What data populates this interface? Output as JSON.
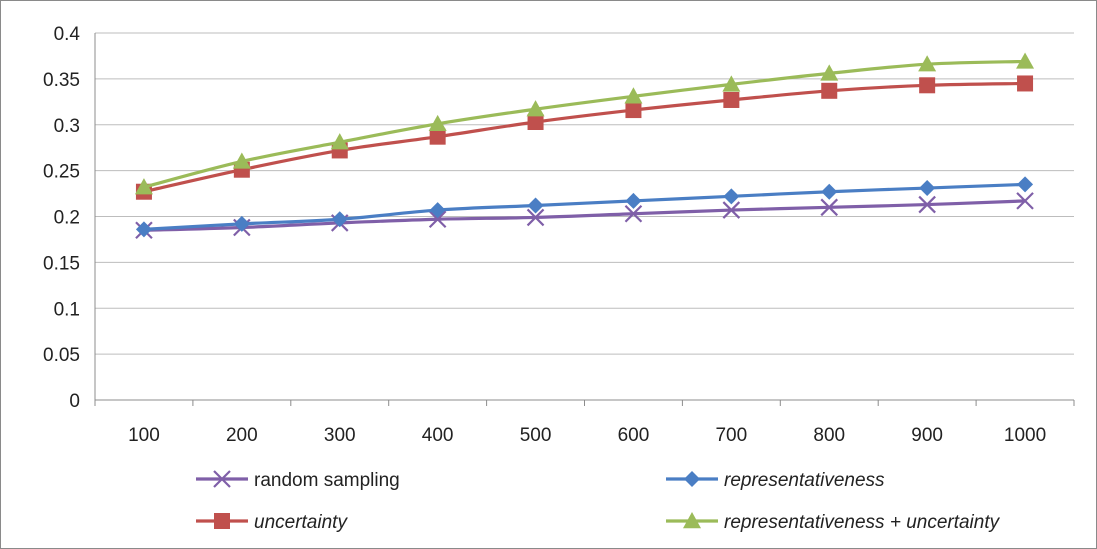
{
  "chart_data": {
    "type": "line",
    "x": [
      100,
      200,
      300,
      400,
      500,
      600,
      700,
      800,
      900,
      1000
    ],
    "ylim": [
      0,
      0.4
    ],
    "y_ticks": [
      "0",
      "0.05",
      "0.1",
      "0.15",
      "0.2",
      "0.25",
      "0.3",
      "0.35",
      "0.4"
    ],
    "x_ticks": [
      "100",
      "200",
      "300",
      "400",
      "500",
      "600",
      "700",
      "800",
      "900",
      "1000"
    ],
    "grid": "horizontal",
    "legend_position": "bottom",
    "series": [
      {
        "name": "random sampling",
        "italic": false,
        "marker": "x",
        "color": "#7F5FA8",
        "values": [
          0.185,
          0.188,
          0.193,
          0.197,
          0.199,
          0.203,
          0.207,
          0.21,
          0.213,
          0.217
        ]
      },
      {
        "name": "representativeness",
        "italic": true,
        "marker": "diamond",
        "color": "#4A7EC4",
        "values": [
          0.186,
          0.192,
          0.197,
          0.207,
          0.212,
          0.217,
          0.222,
          0.227,
          0.231,
          0.235
        ]
      },
      {
        "name": "uncertainty",
        "italic": true,
        "marker": "square",
        "color": "#C0504D",
        "values": [
          0.227,
          0.251,
          0.272,
          0.287,
          0.303,
          0.316,
          0.327,
          0.337,
          0.343,
          0.345
        ]
      },
      {
        "name": "representativeness + uncertainty",
        "italic": true,
        "marker": "triangle",
        "color": "#9BBB59",
        "values": [
          0.232,
          0.26,
          0.281,
          0.301,
          0.317,
          0.331,
          0.344,
          0.356,
          0.366,
          0.369
        ]
      }
    ]
  }
}
